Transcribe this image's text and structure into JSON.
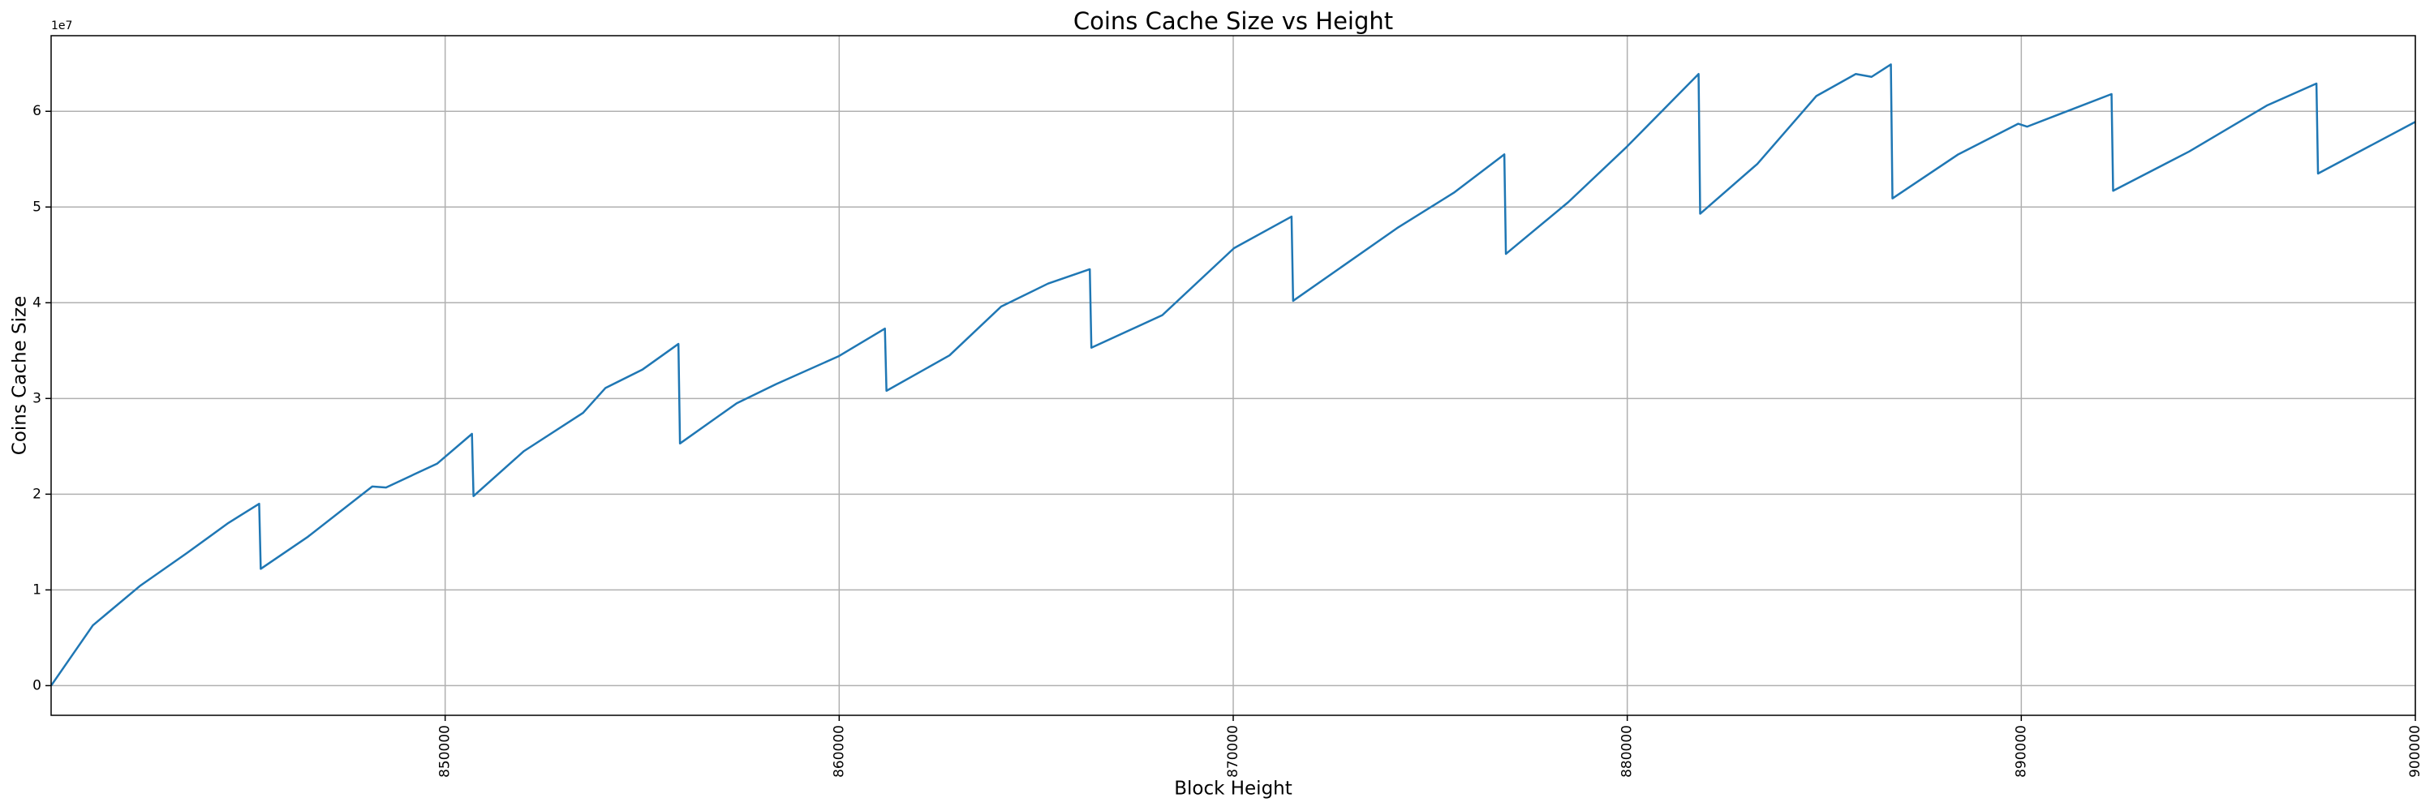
{
  "chart_data": {
    "type": "line",
    "title": "Coins Cache Size vs Height",
    "x_label": "Block Height",
    "y_label": "Coins Cache Size",
    "y_offset_label": "1e7",
    "x": [
      840000,
      841060,
      842250,
      843430,
      844500,
      845280,
      845320,
      846500,
      848150,
      848500,
      849800,
      850680,
      850720,
      852000,
      853500,
      854070,
      855000,
      855920,
      855960,
      857400,
      858400,
      859980,
      861160,
      861200,
      862800,
      864110,
      865300,
      866360,
      866400,
      868200,
      870020,
      871480,
      871520,
      874160,
      875600,
      876880,
      876920,
      878500,
      879990,
      881810,
      881850,
      883300,
      884800,
      885800,
      886200,
      886690,
      886730,
      888400,
      889920,
      890150,
      892290,
      892330,
      894260,
      896230,
      897490,
      897530,
      900000
    ],
    "series": [
      {
        "name": "Coins Cache Size",
        "color": "#1f77b4",
        "values": [
          0,
          6300000,
          10400000,
          13800000,
          17000000,
          19000000,
          12200000,
          15500000,
          20800000,
          20700000,
          23200000,
          26300000,
          19800000,
          24500000,
          28500000,
          31100000,
          33000000,
          35700000,
          25300000,
          29500000,
          31500000,
          34400000,
          37300000,
          30800000,
          34500000,
          39600000,
          42000000,
          43500000,
          35300000,
          38700000,
          45700000,
          49000000,
          40200000,
          47800000,
          51500000,
          55500000,
          45100000,
          50500000,
          56300000,
          63900000,
          49300000,
          54500000,
          61600000,
          63900000,
          63600000,
          64900000,
          50900000,
          55500000,
          58700000,
          58400000,
          61800000,
          51700000,
          55800000,
          60600000,
          62900000,
          53500000,
          58900000
        ]
      }
    ],
    "xlim": [
      840000,
      900000
    ],
    "ylim": [
      -3100000,
      67900000
    ],
    "xticks": [
      850000,
      860000,
      870000,
      880000,
      890000,
      900000
    ],
    "yticks": [
      {
        "value": 0,
        "label": "0"
      },
      {
        "value": 10000000,
        "label": "1"
      },
      {
        "value": 20000000,
        "label": "2"
      },
      {
        "value": 30000000,
        "label": "3"
      },
      {
        "value": 40000000,
        "label": "4"
      },
      {
        "value": 50000000,
        "label": "5"
      },
      {
        "value": 60000000,
        "label": "6"
      }
    ],
    "grid": true
  }
}
